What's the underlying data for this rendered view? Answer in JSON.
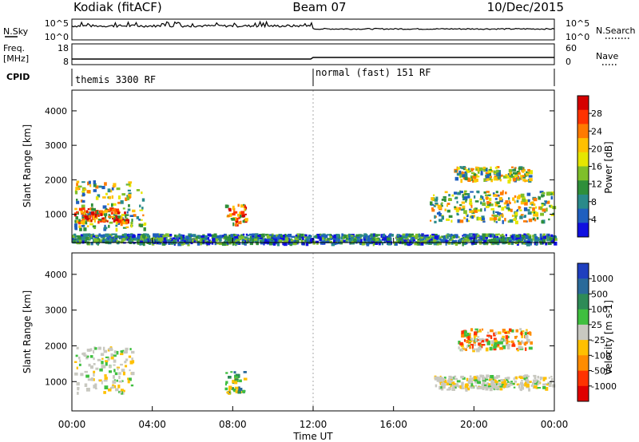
{
  "header": {
    "radar": "Kodiak (fitACF)",
    "beam": "Beam 07",
    "date": "10/Dec/2015"
  },
  "strips": {
    "nsky_label": "N.Sky",
    "nsky_ticks": [
      "10^5",
      "10^0"
    ],
    "nsearch_label": "N.Search",
    "nsearch_ticks": [
      "10^5",
      "10^0"
    ],
    "freq_label": "Freq.",
    "freq_unit": "[MHz]",
    "freq_ticks": [
      "18",
      "8"
    ],
    "nave_label": "Nave",
    "nave_ticks": [
      "60",
      "0"
    ],
    "cpid_label": "CPID",
    "cpid_segments": [
      {
        "label": "themis 3300 RF",
        "start_hour": 0
      },
      {
        "label": "normal (fast) 151 RF",
        "start_hour": 12
      }
    ]
  },
  "chart_data": [
    {
      "type": "heatmap",
      "panel": "power",
      "ylabel": "Slant Range [km]",
      "yticks": [
        1000,
        2000,
        3000,
        4000
      ],
      "ylim": [
        180,
        4600
      ],
      "xlim": [
        0,
        24
      ],
      "colorbar": {
        "label": "Power [dB]",
        "ticks": [
          "28",
          "24",
          "20",
          "16",
          "12",
          "8",
          "4"
        ],
        "colors": [
          "#d50000",
          "#ff3300",
          "#ff7a00",
          "#ffc000",
          "#e6e600",
          "#7fbf2a",
          "#2f8f3a",
          "#2a8a8a",
          "#1f5fbf",
          "#1010e0"
        ]
      },
      "regions": [
        {
          "t": [
            0.1,
            3.6
          ],
          "r": [
            600,
            2000
          ],
          "level": "mid"
        },
        {
          "t": [
            0.1,
            2.7
          ],
          "r": [
            800,
            1200
          ],
          "level": "high"
        },
        {
          "t": [
            7.6,
            8.6
          ],
          "r": [
            700,
            1300
          ],
          "level": "high"
        },
        {
          "t": [
            0,
            24
          ],
          "r": [
            180,
            450
          ],
          "level": "low"
        },
        {
          "t": [
            17.8,
            23.9
          ],
          "r": [
            800,
            1700
          ],
          "level": "mid"
        },
        {
          "t": [
            19.0,
            22.8
          ],
          "r": [
            2000,
            2400
          ],
          "level": "mid"
        }
      ]
    },
    {
      "type": "heatmap",
      "panel": "velocity",
      "ylabel": "Slant Range [km]",
      "yticks": [
        1000,
        2000,
        3000,
        4000
      ],
      "ylim": [
        180,
        4600
      ],
      "xlim": [
        0,
        24
      ],
      "colorbar": {
        "label": "Velocity [m s-1]",
        "ticks": [
          "1000",
          "500",
          "100",
          "25",
          "-25",
          "-100",
          "-500",
          "-1000"
        ],
        "colors": [
          "#1f3fbf",
          "#2a6a9a",
          "#2e8b57",
          "#3fbf3f",
          "#c8c8c0",
          "#ffc000",
          "#ff8c00",
          "#ff3300",
          "#e00000"
        ]
      },
      "regions": [
        {
          "t": [
            0.1,
            3.0
          ],
          "r": [
            700,
            2000
          ],
          "level": "ground"
        },
        {
          "t": [
            7.6,
            8.6
          ],
          "r": [
            700,
            1300
          ],
          "level": "positive"
        },
        {
          "t": [
            18.0,
            23.9
          ],
          "r": [
            800,
            1200
          ],
          "level": "ground"
        },
        {
          "t": [
            19.2,
            22.8
          ],
          "r": [
            1900,
            2500
          ],
          "level": "negative"
        }
      ]
    }
  ],
  "xaxis": {
    "ticks": [
      "00:00",
      "04:00",
      "08:00",
      "12:00",
      "16:00",
      "20:00",
      "00:00"
    ],
    "label": "Time UT"
  }
}
